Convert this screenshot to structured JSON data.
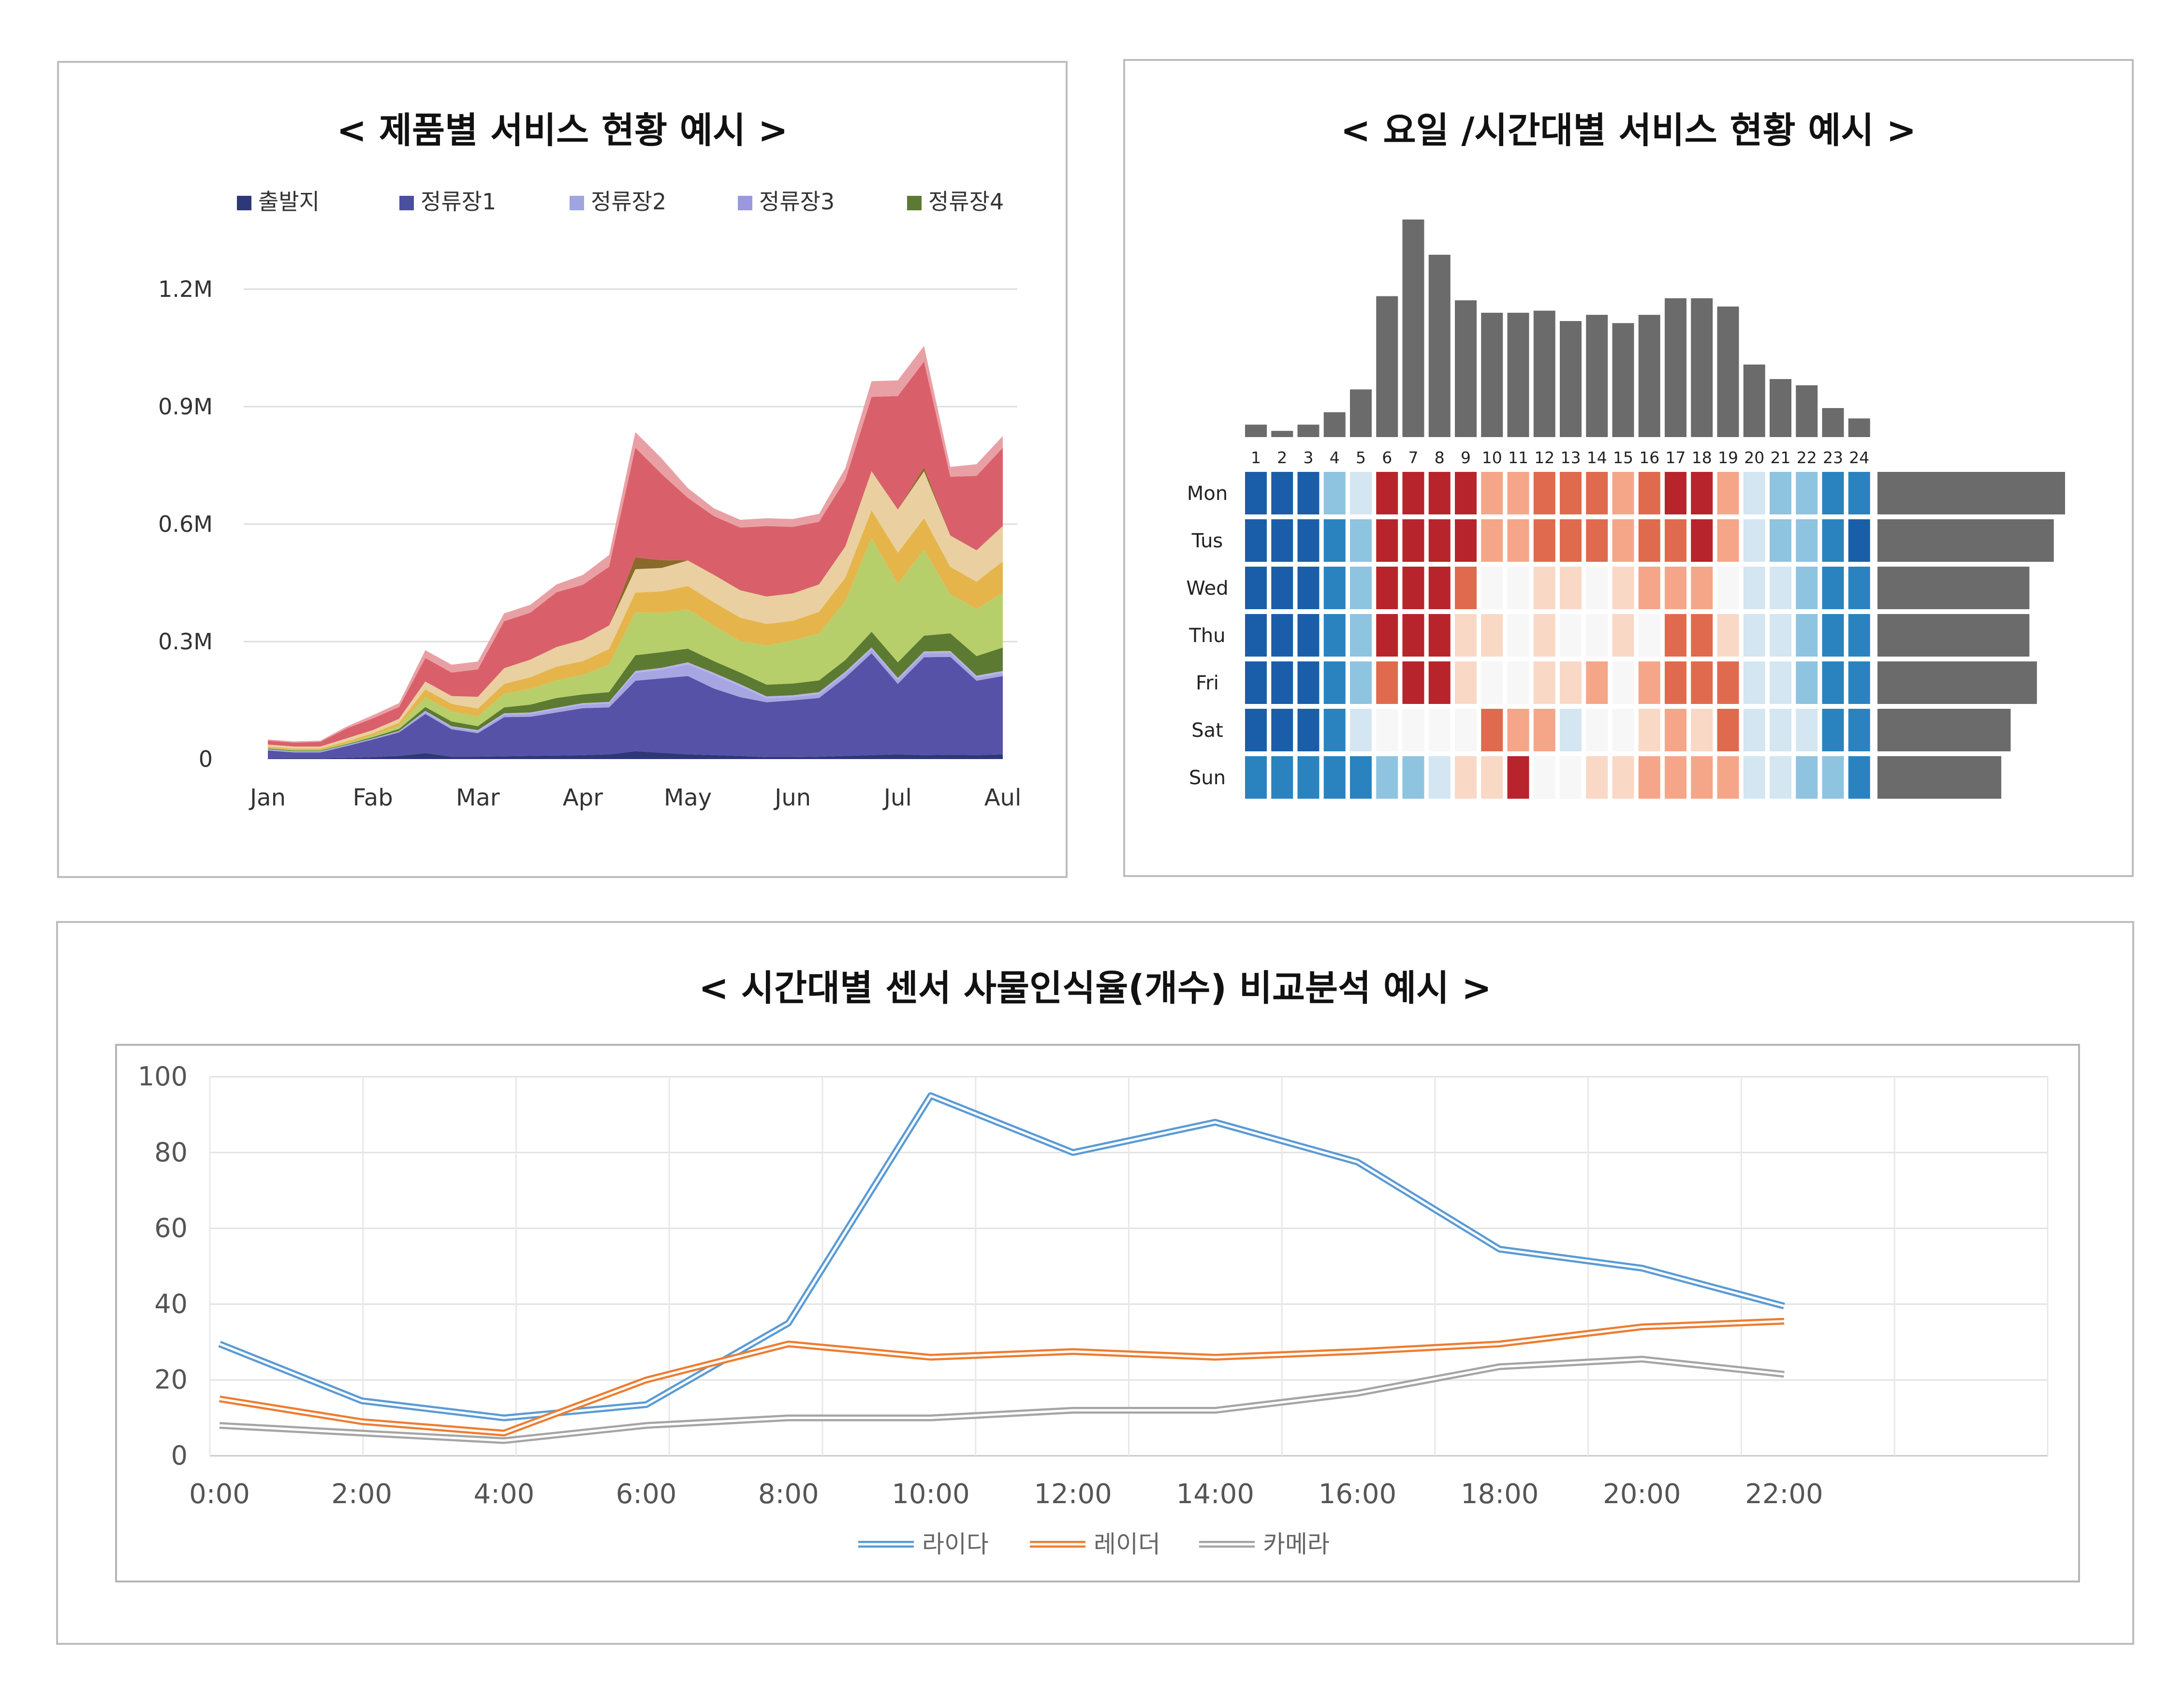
{
  "charts": [
    {
      "title": "< 제품별 서비스 현황 예시 >",
      "type": "area",
      "legend_position": "top",
      "x_tick_labels": [
        "Jan",
        "Fab",
        "Mar",
        "Apr",
        "May",
        "Jun",
        "Jul",
        "Aul"
      ],
      "y_tick_labels": [
        "0",
        "0.3M",
        "0.6M",
        "0.9M",
        "1.2M"
      ],
      "ylim": [
        0,
        1200000
      ],
      "grid": true,
      "legend_entries": [
        {
          "name": "출발지",
          "color": "#2e3778"
        },
        {
          "name": "정류장1",
          "color": "#4a4fa0"
        },
        {
          "name": "정류장2",
          "color": "#a0a4e0"
        },
        {
          "name": "정류장3",
          "color": "#9c98e0"
        },
        {
          "name": "정류장4",
          "color": "#5c7a32"
        }
      ],
      "x_positions": [
        0,
        0.25,
        0.5,
        0.75,
        1,
        1.25,
        1.5,
        1.75,
        2,
        2.25,
        2.5,
        2.75,
        3,
        3.25,
        3.5,
        3.75,
        4,
        4.25,
        4.5,
        4.75,
        5,
        5.25,
        5.5,
        5.75,
        6,
        6.25,
        6.5,
        6.75,
        7
      ],
      "layer_colors": [
        "#2e3778",
        "#5552a8",
        "#a8a6e2",
        "#b7b5e8",
        "#5c7a32",
        "#b7cf6a",
        "#e5b54c",
        "#ead0a0",
        "#8a6a2a",
        "#d9606a",
        "#e9a0a4"
      ],
      "layers": [
        {
          "values": [
            2000,
            2000,
            2000,
            3000,
            5000,
            8000,
            15000,
            6000,
            6000,
            7000,
            8000,
            9000,
            10000,
            12000,
            20000,
            16000,
            12000,
            10000,
            8000,
            5000,
            5000,
            6000,
            8000,
            10000,
            12000,
            10000,
            11000,
            10000,
            12000
          ]
        },
        {
          "values": [
            20000,
            15000,
            15000,
            30000,
            45000,
            60000,
            100000,
            70000,
            60000,
            100000,
            100000,
            110000,
            120000,
            120000,
            180000,
            190000,
            200000,
            170000,
            150000,
            140000,
            145000,
            150000,
            200000,
            260000,
            180000,
            250000,
            250000,
            190000,
            200000
          ]
        },
        {
          "values": [
            2000,
            2000,
            2000,
            2000,
            2000,
            3000,
            5000,
            5000,
            5000,
            6000,
            7000,
            8000,
            9000,
            10000,
            20000,
            22000,
            30000,
            35000,
            28000,
            10000,
            8000,
            10000,
            10000,
            10000,
            10000,
            10000,
            10000,
            8000,
            8000
          ]
        },
        {
          "values": [
            1000,
            1000,
            1000,
            1000,
            1000,
            1000,
            3000,
            3000,
            3000,
            4000,
            4000,
            4000,
            4000,
            4000,
            5000,
            5000,
            5000,
            5000,
            5000,
            5000,
            5000,
            5000,
            5000,
            5000,
            5000,
            5000,
            5000,
            5000,
            5000
          ]
        },
        {
          "values": [
            2000,
            2000,
            2000,
            2000,
            3000,
            5000,
            10000,
            12000,
            10000,
            15000,
            20000,
            25000,
            22000,
            25000,
            40000,
            40000,
            35000,
            30000,
            30000,
            30000,
            30000,
            30000,
            30000,
            40000,
            40000,
            40000,
            45000,
            50000,
            60000
          ]
        },
        {
          "values": [
            2000,
            2000,
            2000,
            3000,
            5000,
            8000,
            25000,
            25000,
            25000,
            35000,
            40000,
            45000,
            50000,
            70000,
            110000,
            100000,
            100000,
            90000,
            80000,
            100000,
            110000,
            120000,
            150000,
            240000,
            200000,
            220000,
            100000,
            120000,
            140000
          ]
        },
        {
          "values": [
            3000,
            3000,
            3000,
            4000,
            5000,
            8000,
            20000,
            20000,
            20000,
            25000,
            30000,
            35000,
            35000,
            40000,
            50000,
            55000,
            60000,
            60000,
            60000,
            55000,
            50000,
            55000,
            60000,
            70000,
            80000,
            80000,
            70000,
            70000,
            80000
          ]
        },
        {
          "values": [
            5000,
            5000,
            5000,
            8000,
            8000,
            10000,
            20000,
            20000,
            30000,
            40000,
            45000,
            50000,
            55000,
            60000,
            60000,
            60000,
            65000,
            70000,
            70000,
            70000,
            70000,
            70000,
            80000,
            100000,
            110000,
            120000,
            80000,
            80000,
            90000
          ]
        },
        {
          "values": [
            0,
            0,
            0,
            0,
            0,
            0,
            0,
            0,
            0,
            0,
            0,
            0,
            0,
            0,
            30000,
            20000,
            0,
            0,
            0,
            0,
            0,
            0,
            0,
            0,
            0,
            10000,
            0,
            0,
            0
          ]
        },
        {
          "values": [
            10000,
            10000,
            12000,
            25000,
            30000,
            30000,
            60000,
            60000,
            70000,
            120000,
            120000,
            140000,
            140000,
            150000,
            280000,
            220000,
            160000,
            150000,
            160000,
            180000,
            170000,
            160000,
            170000,
            190000,
            290000,
            270000,
            150000,
            190000,
            200000
          ]
        },
        {
          "values": [
            3000,
            3000,
            3000,
            5000,
            8000,
            10000,
            20000,
            20000,
            20000,
            20000,
            20000,
            20000,
            25000,
            30000,
            40000,
            40000,
            25000,
            20000,
            20000,
            20000,
            20000,
            20000,
            30000,
            40000,
            40000,
            40000,
            25000,
            30000,
            30000
          ]
        }
      ]
    },
    {
      "title": "< 요일 /시간대별 서비스 현황 예시 >",
      "type": "heatmap",
      "hours": [
        "1",
        "2",
        "3",
        "4",
        "5",
        "6",
        "7",
        "8",
        "9",
        "10",
        "11",
        "12",
        "13",
        "14",
        "15",
        "16",
        "17",
        "18",
        "19",
        "20",
        "21",
        "22",
        "23",
        "24"
      ],
      "days": [
        "Mon",
        "Tus",
        "Wed",
        "Thu",
        "Fri",
        "Sat",
        "Sun"
      ],
      "hourly_totals": [
        6,
        3,
        6,
        12,
        23,
        68,
        105,
        88,
        66,
        60,
        60,
        61,
        56,
        59,
        55,
        59,
        67,
        67,
        63,
        35,
        28,
        25,
        14,
        9
      ],
      "daily_totals": [
        100,
        94,
        81,
        81,
        85,
        71,
        66
      ],
      "bar_color": "#6b6b6b",
      "palette": [
        "#1a5ea9",
        "#2a83bf",
        "#8ec4df",
        "#d3e6f1",
        "#f7f7f7",
        "#fad8c6",
        "#f5a688",
        "#e06a4e",
        "#b8242c"
      ],
      "levels": [
        [
          0,
          0,
          0,
          2,
          3,
          8,
          8,
          8,
          8,
          6,
          6,
          7,
          7,
          7,
          6,
          7,
          8,
          8,
          6,
          3,
          2,
          2,
          1,
          1
        ],
        [
          0,
          0,
          0,
          1,
          2,
          8,
          8,
          8,
          8,
          6,
          6,
          7,
          7,
          7,
          6,
          7,
          7,
          8,
          6,
          3,
          2,
          2,
          1,
          0
        ],
        [
          0,
          0,
          0,
          1,
          2,
          8,
          8,
          8,
          7,
          4,
          4,
          5,
          5,
          4,
          5,
          6,
          6,
          6,
          4,
          3,
          3,
          2,
          1,
          1
        ],
        [
          0,
          0,
          0,
          1,
          2,
          8,
          8,
          8,
          5,
          5,
          4,
          5,
          4,
          4,
          5,
          4,
          7,
          7,
          5,
          3,
          3,
          2,
          1,
          1
        ],
        [
          0,
          0,
          0,
          1,
          2,
          7,
          8,
          8,
          5,
          4,
          4,
          5,
          5,
          6,
          4,
          6,
          7,
          7,
          7,
          3,
          3,
          2,
          1,
          1
        ],
        [
          0,
          0,
          0,
          1,
          3,
          4,
          4,
          4,
          4,
          7,
          6,
          6,
          3,
          4,
          4,
          5,
          6,
          5,
          7,
          3,
          3,
          3,
          1,
          1
        ],
        [
          1,
          1,
          1,
          1,
          1,
          2,
          2,
          3,
          5,
          5,
          8,
          4,
          4,
          5,
          5,
          6,
          6,
          6,
          6,
          3,
          3,
          2,
          2,
          1
        ]
      ]
    },
    {
      "title": "< 시간대별 센서 사물인식율(개수) 비교분석 예시 >",
      "type": "line",
      "categories": [
        "0:00",
        "2:00",
        "4:00",
        "6:00",
        "8:00",
        "10:00",
        "12:00",
        "14:00",
        "16:00",
        "18:00",
        "20:00",
        "22:00"
      ],
      "y_tick_labels": [
        "0",
        "20",
        "40",
        "60",
        "80",
        "100"
      ],
      "ylim": [
        0,
        100
      ],
      "grid": true,
      "legend_position": "bottom",
      "series": [
        {
          "name": "라이다",
          "color": "#5b9bd5",
          "values": [
            29.5,
            14.5,
            10,
            13.5,
            35,
            95,
            80,
            88,
            77.5,
            54.5,
            49.5,
            39.5
          ]
        },
        {
          "name": "레이더",
          "color": "#ed7d31",
          "values": [
            15,
            9,
            6,
            20,
            29.5,
            26,
            27.5,
            26,
            27.5,
            29.5,
            34,
            35.5
          ]
        },
        {
          "name": "카메라",
          "color": "#a5a5a5",
          "values": [
            8,
            6,
            4,
            8,
            10,
            10,
            12,
            12,
            16.5,
            23.5,
            25.5,
            21.5
          ]
        }
      ]
    }
  ]
}
